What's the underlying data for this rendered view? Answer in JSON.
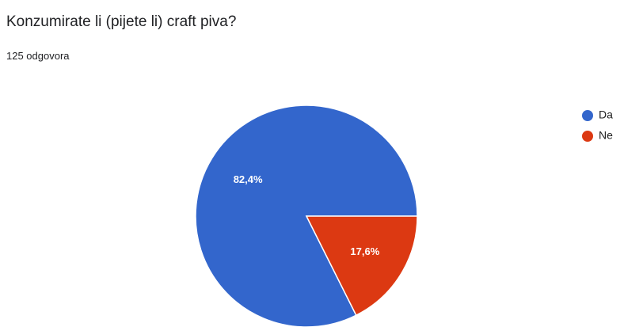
{
  "title": "Konzumirate li (pijete li) craft piva?",
  "response_count": "125 odgovora",
  "chart_data": {
    "type": "pie",
    "title": "Konzumirate li (pijete li) craft piva?",
    "categories": [
      "Da",
      "Ne"
    ],
    "values": [
      82.4,
      17.6
    ],
    "value_labels": [
      "82,4%",
      "17,6%"
    ],
    "colors": [
      "#3366CC",
      "#DC3912"
    ],
    "legend_position": "right"
  }
}
